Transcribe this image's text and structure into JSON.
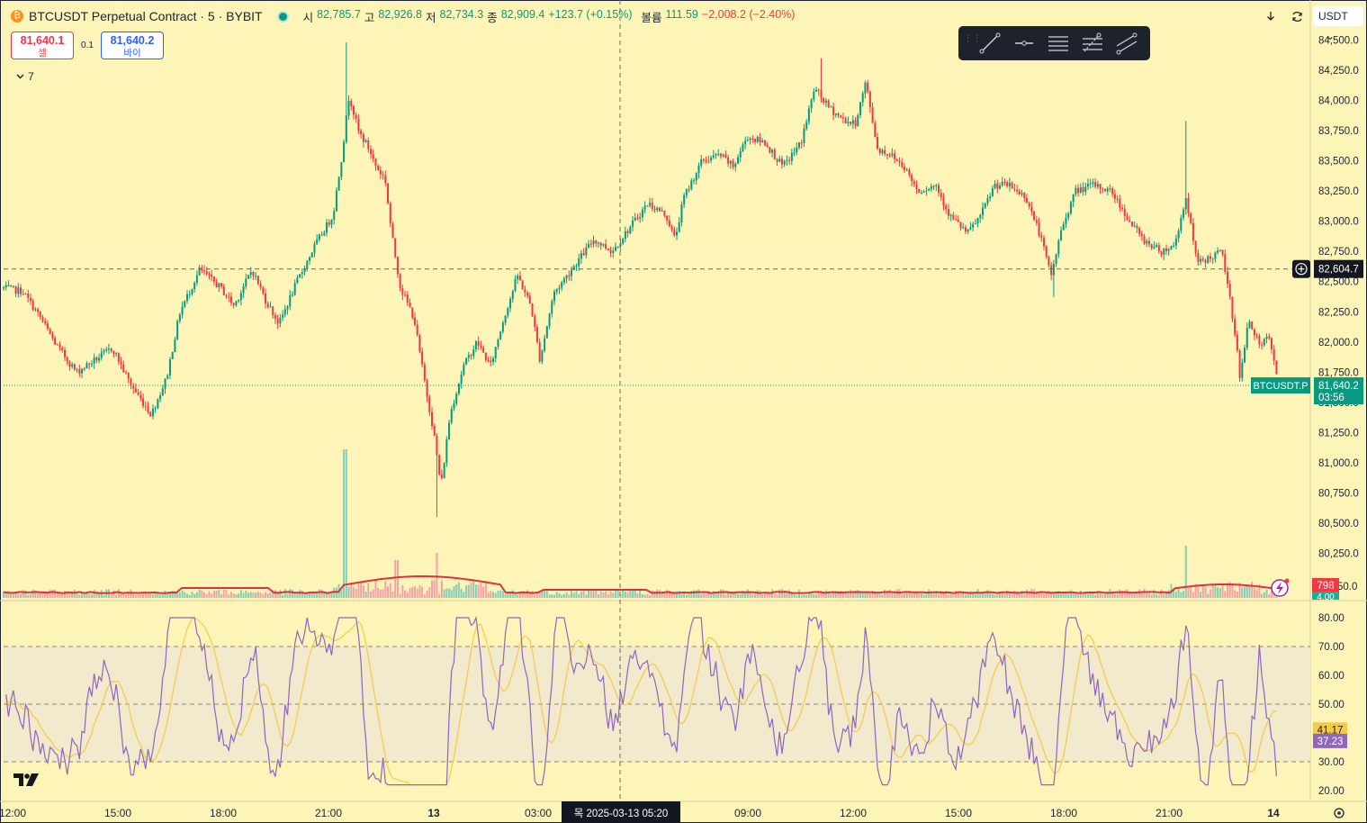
{
  "header": {
    "symbol_title": "BTCUSDT Perpetual Contract · 5 · BYBIT",
    "coin_glyph": "₿",
    "ohlc": {
      "open_label": "시",
      "open": "82,785.7",
      "high_label": "고",
      "high": "82,926.8",
      "low_label": "저",
      "low": "82,734.3",
      "close_label": "종",
      "close": "82,909.4",
      "change": "+123.7 (+0.15%)",
      "volume_label": "볼륨",
      "volume": "111.59",
      "volume_change": "−2,008.2 (−2.40%)"
    }
  },
  "trade": {
    "sell_price": "81,640.1",
    "sell_label": "셀",
    "spread": "0.1",
    "buy_price": "81,640.2",
    "buy_label": "바이"
  },
  "indicators_collapse": {
    "count": "7"
  },
  "top_right": {
    "currency": "USDT",
    "currency_arrow": "⌄"
  },
  "drawing_toolbar": {
    "tools": [
      "trend-line",
      "horizontal-ray",
      "horizontal-lines",
      "fib-retracement",
      "parallel-channel"
    ]
  },
  "colors": {
    "background": "#fdf5b8",
    "up": "#089981",
    "down": "#f23645",
    "rsi": "#8f65c0",
    "rsi_ma": "#f7c948",
    "volume_ma": "#e0323d",
    "rsi_band": "#f2eacc"
  },
  "chart_data": {
    "type": "candlestick",
    "symbol": "BTCUSDT.P",
    "interval": "5",
    "exchange": "BYBIT",
    "price_axis": {
      "ticks": [
        "84,500.0",
        "84,250.0",
        "84,000.0",
        "83,750.0",
        "83,500.0",
        "83,250.0",
        "83,000.0",
        "82,750.0",
        "82,500.0",
        "82,250.0",
        "82,000.0",
        "81,750.0",
        "81,500.0",
        "81,250.0",
        "81,000.0",
        "80,750.0",
        "80,500.0",
        "80,250.0"
      ],
      "range": [
        80180,
        84560
      ]
    },
    "time_axis": {
      "ticks": [
        "12:00",
        "15:00",
        "18:00",
        "21:00",
        "13",
        "03:00",
        "06:00",
        "09:00",
        "12:00",
        "15:00",
        "18:00",
        "21:00",
        "14"
      ]
    },
    "series_path": [
      [
        0,
        82450
      ],
      [
        25,
        82420
      ],
      [
        45,
        82200
      ],
      [
        62,
        81980
      ],
      [
        85,
        81750
      ],
      [
        105,
        81850
      ],
      [
        125,
        81950
      ],
      [
        145,
        81650
      ],
      [
        168,
        81400
      ],
      [
        185,
        81700
      ],
      [
        200,
        82250
      ],
      [
        222,
        82600
      ],
      [
        245,
        82450
      ],
      [
        260,
        82300
      ],
      [
        280,
        82600
      ],
      [
        295,
        82350
      ],
      [
        310,
        82150
      ],
      [
        330,
        82500
      ],
      [
        350,
        82800
      ],
      [
        370,
        83050
      ],
      [
        380,
        83550
      ],
      [
        388,
        84050
      ],
      [
        398,
        83750
      ],
      [
        410,
        83600
      ],
      [
        418,
        83450
      ],
      [
        428,
        83350
      ],
      [
        435,
        82900
      ],
      [
        445,
        82450
      ],
      [
        460,
        82200
      ],
      [
        470,
        81750
      ],
      [
        482,
        81250
      ],
      [
        490,
        80800
      ],
      [
        500,
        81400
      ],
      [
        515,
        81800
      ],
      [
        530,
        82000
      ],
      [
        545,
        81800
      ],
      [
        560,
        82200
      ],
      [
        575,
        82550
      ],
      [
        590,
        82300
      ],
      [
        600,
        81850
      ],
      [
        615,
        82400
      ],
      [
        640,
        82650
      ],
      [
        660,
        82850
      ],
      [
        680,
        82750
      ],
      [
        700,
        82950
      ],
      [
        720,
        83150
      ],
      [
        740,
        83050
      ],
      [
        750,
        82850
      ],
      [
        760,
        83200
      ],
      [
        780,
        83500
      ],
      [
        800,
        83550
      ],
      [
        815,
        83450
      ],
      [
        830,
        83700
      ],
      [
        850,
        83650
      ],
      [
        870,
        83450
      ],
      [
        890,
        83650
      ],
      [
        905,
        84100
      ],
      [
        920,
        83950
      ],
      [
        935,
        83850
      ],
      [
        950,
        83800
      ],
      [
        962,
        84150
      ],
      [
        975,
        83600
      ],
      [
        990,
        83550
      ],
      [
        1005,
        83450
      ],
      [
        1020,
        83250
      ],
      [
        1040,
        83300
      ],
      [
        1055,
        83050
      ],
      [
        1075,
        82900
      ],
      [
        1090,
        83050
      ],
      [
        1105,
        83300
      ],
      [
        1120,
        83300
      ],
      [
        1140,
        83200
      ],
      [
        1155,
        82900
      ],
      [
        1168,
        82550
      ],
      [
        1180,
        82950
      ],
      [
        1195,
        83250
      ],
      [
        1215,
        83300
      ],
      [
        1235,
        83250
      ],
      [
        1255,
        83000
      ],
      [
        1270,
        82850
      ],
      [
        1290,
        82750
      ],
      [
        1305,
        82800
      ],
      [
        1318,
        83200
      ],
      [
        1330,
        82650
      ],
      [
        1345,
        82700
      ],
      [
        1358,
        82750
      ],
      [
        1372,
        82100
      ],
      [
        1378,
        81700
      ],
      [
        1388,
        82200
      ],
      [
        1400,
        81950
      ],
      [
        1410,
        82050
      ],
      [
        1420,
        81650
      ]
    ],
    "last_price": {
      "label": "BTCUSDT.P",
      "price": "81,640.2",
      "countdown": "03:56"
    },
    "crosshair": {
      "price": "82,604.7",
      "time": "목 2025-03-13   05:20"
    },
    "volume": {
      "last_value_label": "798",
      "hidden_axis_label": "4.00",
      "axis_label_partial": "50.0"
    },
    "rsi": {
      "ticks": [
        "80.00",
        "70.00",
        "60.00",
        "50.00",
        "40.00",
        "30.00",
        "20.00"
      ],
      "range": [
        16,
        86
      ],
      "band": [
        30,
        70
      ],
      "middle": 50,
      "rsi_value": "37.23",
      "ma_value": "41.17"
    }
  }
}
